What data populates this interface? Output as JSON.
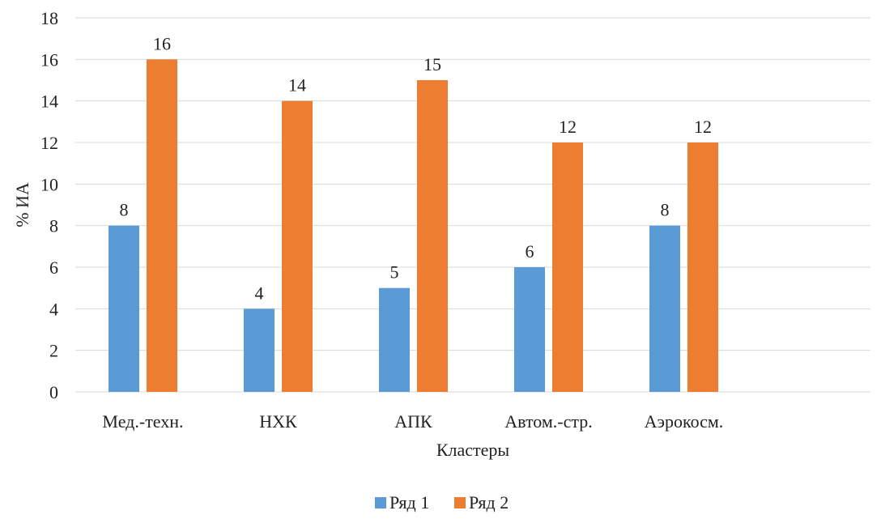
{
  "chart_data": {
    "type": "bar",
    "title": "",
    "xlabel": "Кластеры",
    "ylabel": "% ИА",
    "categories": [
      "Мед.-техн.",
      "НХК",
      "АПК",
      "Автом.-стр.",
      "Аэрокосм."
    ],
    "series": [
      {
        "name": "Ряд 1",
        "color": "#5B9BD5",
        "values": [
          8,
          4,
          5,
          6,
          8
        ]
      },
      {
        "name": "Ряд 2",
        "color": "#ED7D31",
        "values": [
          16,
          14,
          15,
          12,
          12
        ]
      }
    ],
    "ylim": [
      0,
      18
    ],
    "yticks": [
      0,
      2,
      4,
      6,
      8,
      10,
      12,
      14,
      16,
      18
    ],
    "grid": true,
    "legend_position": "bottom"
  }
}
